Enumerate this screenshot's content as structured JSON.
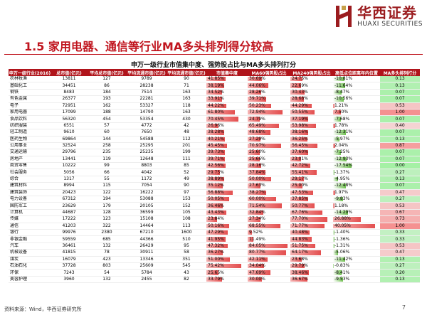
{
  "brand": {
    "cn": "华西证券",
    "en": "HUAXI SECURITIES"
  },
  "heading": "1.5 家用电器、通信等行业MA多头排列得分较高",
  "table_title": "申万一级行业市值集中度、强势股占比与MA多头排列打分",
  "columns": [
    "申万一级行业(2016)",
    "总市值(亿元)",
    "平均总市值(亿元)",
    "平均流通市值(亿元)",
    "平均流通市值(亿元)",
    "市值集中度",
    "MA60强势股占比",
    "MA240强势股占比",
    "高低点位距离年内位置",
    "MA多头排列打分"
  ],
  "rows": [
    [
      "农林牧渔",
      "13811",
      "127",
      "9789",
      "90",
      "41.85%",
      "30.69%",
      "24.75%",
      "-10.81%",
      "0.13"
    ],
    [
      "基础化工",
      "34451",
      "86",
      "28238",
      "71",
      "38.19%",
      "44.06%",
      "22.69%",
      "-11.64%",
      "0.13"
    ],
    [
      "钢铁",
      "8483",
      "184",
      "7514",
      "163",
      "34.52%",
      "28.26%",
      "30.43%",
      "-8.47%",
      "0.07"
    ],
    [
      "有色金属",
      "26377",
      "193",
      "22281",
      "163",
      "33.91%",
      "39.71%",
      "28.68%",
      "-10.56%",
      "0.07"
    ],
    [
      "电子",
      "72951",
      "162",
      "53327",
      "118",
      "44.22%",
      "50.23%",
      "44.29%",
      "1.21%",
      "0.53"
    ],
    [
      "家用电器",
      "17099",
      "188",
      "14790",
      "163",
      "61.80%",
      "72.94%",
      "50.55%",
      "7.50%",
      "1.00"
    ],
    [
      "食品饮料",
      "56320",
      "454",
      "53354",
      "430",
      "70.45%",
      "24.79%",
      "37.19%",
      "-7.68%",
      "0.07"
    ],
    [
      "纺织服装",
      "6551",
      "57",
      "4772",
      "42",
      "26.96%",
      "65.49%",
      "53.98%",
      "1.78%",
      "0.40"
    ],
    [
      "轻工制造",
      "9610",
      "60",
      "7650",
      "48",
      "38.28%",
      "48.68%",
      "38.16%",
      "-12.31%",
      "0.07"
    ],
    [
      "医药生物",
      "69864",
      "144",
      "54588",
      "112",
      "40.21%",
      "27.29%",
      "36.25%",
      "-5.97%",
      "0.13"
    ],
    [
      "公用事业",
      "32524",
      "258",
      "25295",
      "201",
      "45.45%",
      "70.97%",
      "56.45%",
      "2.04%",
      "0.87"
    ],
    [
      "交通运输",
      "29796",
      "235",
      "25235",
      "199",
      "39.73%",
      "25.60%",
      "37.60%",
      "-7.25%",
      "0.07"
    ],
    [
      "房地产",
      "13441",
      "119",
      "12648",
      "111",
      "39.71%",
      "25.66%",
      "23.01%",
      "-12.93%",
      "0.07"
    ],
    [
      "商贸零售",
      "10222",
      "99",
      "8803",
      "85",
      "42.56%",
      "28.16%",
      "42.72%",
      "-17.54%",
      "0.00"
    ],
    [
      "社会服务",
      "5056",
      "66",
      "4042",
      "52",
      "29.75%",
      "37.84%",
      "55.41%",
      "-1.37%",
      "0.27"
    ],
    [
      "综合",
      "1317",
      "55",
      "1172",
      "49",
      "38.89%",
      "50.00%",
      "29.17%",
      "-4.95%",
      "0.13"
    ],
    [
      "建筑材料",
      "8994",
      "115",
      "7054",
      "90",
      "35.12%",
      "27.63%",
      "25.00%",
      "-12.48%",
      "0.07"
    ],
    [
      "建筑装饰",
      "20423",
      "122",
      "16222",
      "97",
      "56.88%",
      "38.27%",
      "47.53%",
      "1.97%",
      "0.47"
    ],
    [
      "电力设备",
      "67312",
      "194",
      "53088",
      "153",
      "50.05%",
      "60.00%",
      "37.85%",
      "-9.83%",
      "0.27"
    ],
    [
      "国防军工",
      "23629",
      "179",
      "20105",
      "152",
      "36.46%",
      "71.54%",
      "50.77%",
      "1.18%",
      "0.53"
    ],
    [
      "计算机",
      "44687",
      "128",
      "36599",
      "105",
      "43.43%",
      "32.84%",
      "67.76%",
      "-14.29%",
      "0.67"
    ],
    [
      "传媒",
      "17222",
      "123",
      "15108",
      "108",
      "23.84%",
      "27.34%",
      "77.70%",
      "26.88%",
      "0.73"
    ],
    [
      "通信",
      "41203",
      "322",
      "14464",
      "113",
      "50.16%",
      "68.55%",
      "71.77%",
      "40.05%",
      "1.00"
    ],
    [
      "银行",
      "99976",
      "2380",
      "67210",
      "1600",
      "47.29%",
      "9.52%",
      "40.48%",
      "-1.40%",
      "0.33"
    ],
    [
      "非银金融",
      "59559",
      "685",
      "44366",
      "510",
      "41.95%",
      "11.49%",
      "44.83%",
      "-1.36%",
      "0.33"
    ],
    [
      "汽车",
      "36461",
      "132",
      "26429",
      "95",
      "47.32%",
      "84.05%",
      "51.75%",
      "-1.31%",
      "0.53"
    ],
    [
      "机械设备",
      "41815",
      "78",
      "30911",
      "58",
      "36.27%",
      "80.77%",
      "64.17%",
      "-5.06%",
      "0.47"
    ],
    [
      "煤炭",
      "16079",
      "423",
      "13346",
      "351",
      "51.00%",
      "42.11%",
      "23.68%",
      "-11.42%",
      "0.13"
    ],
    [
      "石油石化",
      "37728",
      "803",
      "25609",
      "545",
      "75.42%",
      "34.04%",
      "29.79%",
      "-0.83%",
      "0.27"
    ],
    [
      "环保",
      "7243",
      "54",
      "5784",
      "43",
      "25.65%",
      "47.69%",
      "38.46%",
      "-8.41%",
      "0.20"
    ],
    [
      "美容护理",
      "3960",
      "132",
      "2455",
      "82",
      "33.79%",
      "30.00%",
      "36.67%",
      "-9.53%",
      "0.13"
    ]
  ],
  "footer": "资料来源：Wind，华西证券研究所",
  "page_number": "7",
  "colors": {
    "accent": "#c0151e",
    "header_bg": "#b0141b",
    "positive": "#e34f4f",
    "negative": "#6fbf4f"
  }
}
